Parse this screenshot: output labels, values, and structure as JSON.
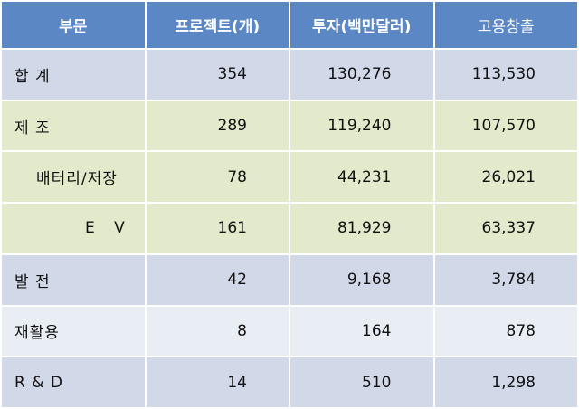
{
  "table": {
    "header": [
      "부문",
      "프로젝트(개)",
      "투자(백만달러)",
      "고용창출"
    ],
    "rows": [
      [
        "합 계",
        "354",
        "130,276",
        "113,530"
      ],
      [
        "제 조",
        "289",
        "119,240",
        "107,570"
      ],
      [
        "배터리/저장",
        "78",
        "44,231",
        "26,021"
      ],
      [
        "E V",
        "161",
        "81,929",
        "63,337"
      ],
      [
        "발 전",
        "42",
        "9,168",
        "3,784"
      ],
      [
        "재활용",
        "8",
        "164",
        "878"
      ],
      [
        "R & D",
        "14",
        "510",
        "1,298"
      ]
    ]
  }
}
